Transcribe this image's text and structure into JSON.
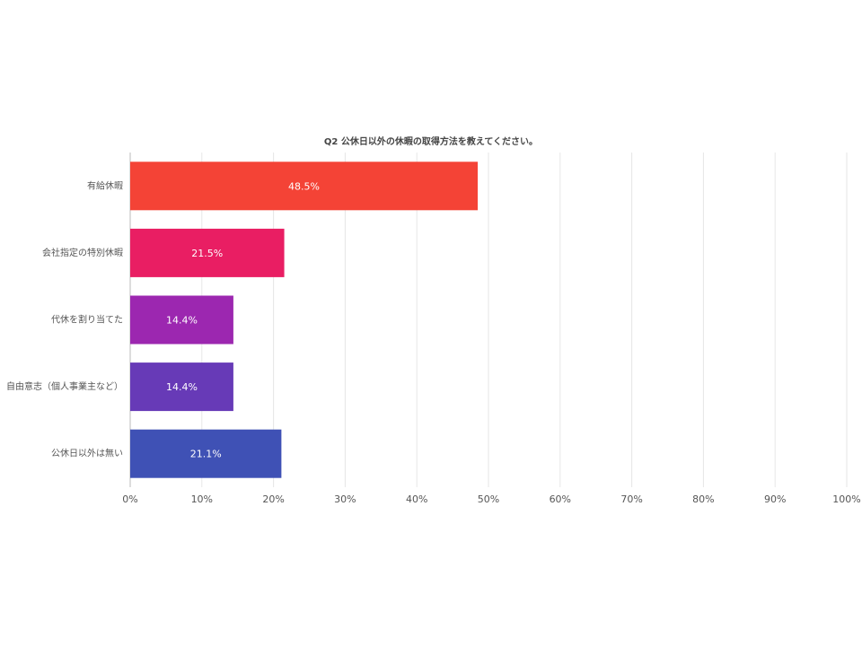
{
  "chart_data": {
    "type": "barh",
    "title": "Q2 公休日以外の休暇の取得方法を教えてください。",
    "categories": [
      "有給休暇",
      "会社指定の特別休暇",
      "代休を割り当てた",
      "自由意志（個人事業主など）",
      "公休日以外は無い"
    ],
    "values": [
      48.5,
      21.5,
      14.4,
      14.4,
      21.1
    ],
    "value_labels": [
      "48.5%",
      "21.5%",
      "14.4%",
      "14.4%",
      "21.1%"
    ],
    "colors": [
      "#f44336",
      "#e91e63",
      "#9c27b0",
      "#673ab7",
      "#3f51b5"
    ],
    "xlim": [
      0,
      100
    ],
    "xticks": [
      {
        "value": 0,
        "label": "0%"
      },
      {
        "value": 10,
        "label": "10%"
      },
      {
        "value": 20,
        "label": "20%"
      },
      {
        "value": 30,
        "label": "30%"
      },
      {
        "value": 40,
        "label": "40%"
      },
      {
        "value": 50,
        "label": "50%"
      },
      {
        "value": 60,
        "label": "60%"
      },
      {
        "value": 70,
        "label": "70%"
      },
      {
        "value": 80,
        "label": "80%"
      },
      {
        "value": 90,
        "label": "90%"
      },
      {
        "value": 100,
        "label": "100%"
      }
    ],
    "grid": true
  }
}
